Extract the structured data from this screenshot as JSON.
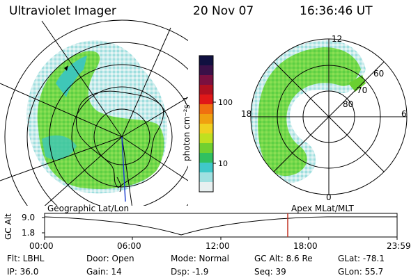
{
  "header": {
    "instrument": "Ultraviolet Imager",
    "date": "20 Nov 07",
    "time": "16:36:46 UT"
  },
  "left_panel": {
    "label": "Geographic Lat/Lon"
  },
  "right_panel": {
    "label": "Apex MLat/MLT",
    "mlt_labels": [
      "12",
      "18",
      "6",
      "0"
    ],
    "mlat_labels": [
      "60",
      "70",
      "80"
    ]
  },
  "colorbar": {
    "unit": "photon cm⁻²s⁻¹",
    "ticks": [
      "100",
      "10"
    ],
    "colors": [
      "#101040",
      "#3a1048",
      "#7a1040",
      "#b01020",
      "#e01818",
      "#f07010",
      "#f0a010",
      "#f0d020",
      "#c0e020",
      "#70d030",
      "#30c060",
      "#40c8c8",
      "#a0e0e0",
      "#e8f0f0"
    ]
  },
  "timeline": {
    "ylabel": "GC Alt",
    "y_ticks": [
      "9.0",
      "1.8"
    ],
    "x_ticks": [
      "00:00",
      "06:00",
      "12:00",
      "18:00",
      "23:59"
    ],
    "marker_time": "16:36",
    "marker_color": "#c03020"
  },
  "status": {
    "flt": "Flt: LBHL",
    "ip": "IP: 36.0",
    "door": "Door: Open",
    "gain": "Gain: 14",
    "mode": "Mode: Normal",
    "dsp": "Dsp:   -1.9",
    "gcalt": "GC Alt: 8.6 Re",
    "seq": "Seq: 39",
    "glat": "GLat: -78.1",
    "glon": "GLon:  55.7"
  }
}
